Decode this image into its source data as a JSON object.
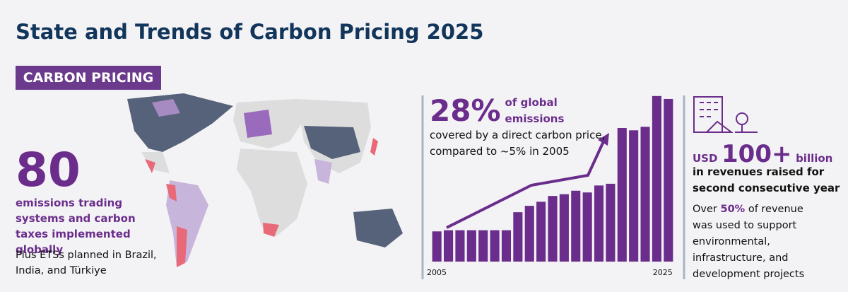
{
  "header": {
    "title": "State and Trends of Carbon Pricing 2025"
  },
  "badge": "CARBON PRICING",
  "stat_left": {
    "number": "80",
    "description": "emissions trading systems and carbon taxes implemented globally",
    "note": "Plus ETSs planned in Brazil, India, and Türkiye"
  },
  "stat_middle": {
    "number": "28%",
    "emphasis": "of global emissions",
    "text": "covered by a direct carbon price, compared to ~5% in 2005"
  },
  "chart_data": {
    "type": "bar",
    "categories": [
      "2005",
      null,
      null,
      null,
      null,
      null,
      null,
      null,
      null,
      null,
      null,
      null,
      null,
      null,
      null,
      null,
      null,
      null,
      null,
      null,
      "2025"
    ],
    "values": [
      5.2,
      5.4,
      5.4,
      5.4,
      5.4,
      5.4,
      5.4,
      8.5,
      9.6,
      10.3,
      11.3,
      11.6,
      12.2,
      11.9,
      13.1,
      13.4,
      23,
      22.6,
      23.2,
      28.5,
      28
    ],
    "color": "#6b2d8b",
    "ylim": [
      0,
      28.6
    ]
  },
  "stat_right": {
    "currency": "USD",
    "number": "100+",
    "unit": "billion",
    "headline": "in revenues raised for second consecutive year",
    "text_before": "Over ",
    "share": "50%",
    "text_after": " of revenue was used to support environmental, infrastructure, and development projects"
  }
}
